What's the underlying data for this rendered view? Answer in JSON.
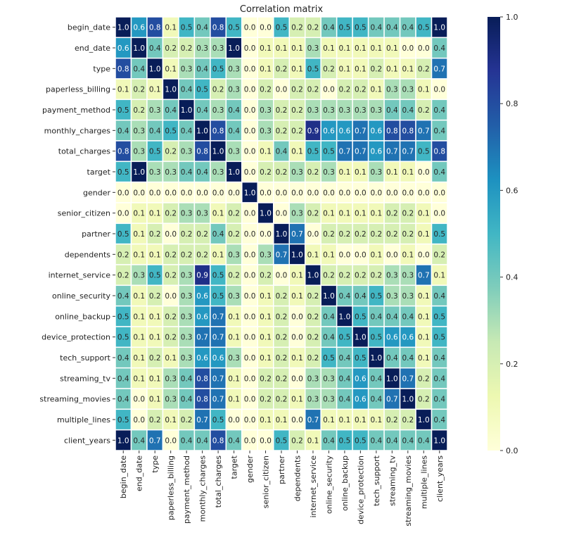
{
  "chart_data": {
    "type": "heatmap",
    "title": "Correlation matrix",
    "colormap": "YlGnBu",
    "vmin": 0.0,
    "vmax": 1.0,
    "colorbar_ticks": [
      "0.0",
      "0.2",
      "0.4",
      "0.6",
      "0.8",
      "1.0"
    ],
    "annotated": true,
    "labels": [
      "begin_date",
      "end_date",
      "type",
      "paperless_billing",
      "payment_method",
      "monthly_charges",
      "total_charges",
      "target",
      "gender",
      "senior_citizen",
      "partner",
      "dependents",
      "internet_service",
      "online_security",
      "online_backup",
      "device_protection",
      "tech_support",
      "streaming_tv",
      "streaming_movies",
      "multiple_lines",
      "client_years"
    ],
    "values": [
      [
        1.0,
        0.6,
        0.8,
        0.1,
        0.5,
        0.4,
        0.8,
        0.5,
        0.0,
        0.0,
        0.5,
        0.2,
        0.2,
        0.4,
        0.5,
        0.5,
        0.4,
        0.4,
        0.4,
        0.5,
        1.0
      ],
      [
        0.6,
        1.0,
        0.4,
        0.2,
        0.2,
        0.3,
        0.3,
        1.0,
        0.0,
        0.1,
        0.1,
        0.1,
        0.3,
        0.1,
        0.1,
        0.1,
        0.1,
        0.1,
        0.0,
        0.0,
        0.4
      ],
      [
        0.8,
        0.4,
        1.0,
        0.1,
        0.3,
        0.4,
        0.5,
        0.3,
        0.0,
        0.1,
        0.2,
        0.1,
        0.5,
        0.2,
        0.1,
        0.1,
        0.2,
        0.1,
        0.1,
        0.2,
        0.7
      ],
      [
        0.1,
        0.2,
        0.1,
        1.0,
        0.4,
        0.5,
        0.2,
        0.3,
        0.0,
        0.2,
        0.0,
        0.2,
        0.2,
        0.0,
        0.2,
        0.2,
        0.1,
        0.3,
        0.3,
        0.1,
        0.0
      ],
      [
        0.5,
        0.2,
        0.3,
        0.4,
        1.0,
        0.4,
        0.3,
        0.4,
        0.0,
        0.3,
        0.2,
        0.2,
        0.3,
        0.3,
        0.3,
        0.3,
        0.3,
        0.4,
        0.4,
        0.2,
        0.4
      ],
      [
        0.4,
        0.3,
        0.4,
        0.5,
        0.4,
        1.0,
        0.8,
        0.4,
        0.0,
        0.3,
        0.2,
        0.2,
        0.9,
        0.6,
        0.6,
        0.7,
        0.6,
        0.8,
        0.8,
        0.7,
        0.4
      ],
      [
        0.8,
        0.3,
        0.5,
        0.2,
        0.3,
        0.8,
        1.0,
        0.3,
        0.0,
        0.1,
        0.4,
        0.1,
        0.5,
        0.5,
        0.7,
        0.7,
        0.6,
        0.7,
        0.7,
        0.5,
        0.8
      ],
      [
        0.5,
        1.0,
        0.3,
        0.3,
        0.4,
        0.4,
        0.3,
        1.0,
        0.0,
        0.2,
        0.2,
        0.3,
        0.2,
        0.3,
        0.1,
        0.1,
        0.3,
        0.1,
        0.1,
        0.0,
        0.4
      ],
      [
        0.0,
        0.0,
        0.0,
        0.0,
        0.0,
        0.0,
        0.0,
        0.0,
        1.0,
        0.0,
        0.0,
        0.0,
        0.0,
        0.0,
        0.0,
        0.0,
        0.0,
        0.0,
        0.0,
        0.0,
        0.0
      ],
      [
        0.0,
        0.1,
        0.1,
        0.2,
        0.3,
        0.3,
        0.1,
        0.2,
        0.0,
        1.0,
        0.0,
        0.3,
        0.2,
        0.1,
        0.1,
        0.1,
        0.1,
        0.2,
        0.2,
        0.1,
        0.0
      ],
      [
        0.5,
        0.1,
        0.2,
        0.0,
        0.2,
        0.2,
        0.4,
        0.2,
        0.0,
        0.0,
        1.0,
        0.7,
        0.0,
        0.2,
        0.2,
        0.2,
        0.2,
        0.2,
        0.2,
        0.1,
        0.5
      ],
      [
        0.2,
        0.1,
        0.1,
        0.2,
        0.2,
        0.2,
        0.1,
        0.3,
        0.0,
        0.3,
        0.7,
        1.0,
        0.1,
        0.1,
        0.0,
        0.0,
        0.1,
        0.0,
        0.1,
        0.0,
        0.2
      ],
      [
        0.2,
        0.3,
        0.5,
        0.2,
        0.3,
        0.9,
        0.5,
        0.2,
        0.0,
        0.2,
        0.0,
        0.1,
        1.0,
        0.2,
        0.2,
        0.2,
        0.2,
        0.3,
        0.3,
        0.7,
        0.1
      ],
      [
        0.4,
        0.1,
        0.2,
        0.0,
        0.3,
        0.6,
        0.5,
        0.3,
        0.0,
        0.1,
        0.2,
        0.1,
        0.2,
        1.0,
        0.4,
        0.4,
        0.5,
        0.3,
        0.3,
        0.1,
        0.4
      ],
      [
        0.5,
        0.1,
        0.1,
        0.2,
        0.3,
        0.6,
        0.7,
        0.1,
        0.0,
        0.1,
        0.2,
        0.0,
        0.2,
        0.4,
        1.0,
        0.5,
        0.4,
        0.4,
        0.4,
        0.1,
        0.5
      ],
      [
        0.5,
        0.1,
        0.1,
        0.2,
        0.3,
        0.7,
        0.7,
        0.1,
        0.0,
        0.1,
        0.2,
        0.0,
        0.2,
        0.4,
        0.5,
        1.0,
        0.5,
        0.6,
        0.6,
        0.1,
        0.5
      ],
      [
        0.4,
        0.1,
        0.2,
        0.1,
        0.3,
        0.6,
        0.6,
        0.3,
        0.0,
        0.1,
        0.2,
        0.1,
        0.2,
        0.5,
        0.4,
        0.5,
        1.0,
        0.4,
        0.4,
        0.1,
        0.4
      ],
      [
        0.4,
        0.1,
        0.1,
        0.3,
        0.4,
        0.8,
        0.7,
        0.1,
        0.0,
        0.2,
        0.2,
        0.0,
        0.3,
        0.3,
        0.4,
        0.6,
        0.4,
        1.0,
        0.7,
        0.2,
        0.4
      ],
      [
        0.4,
        0.0,
        0.1,
        0.3,
        0.4,
        0.8,
        0.7,
        0.1,
        0.0,
        0.2,
        0.2,
        0.1,
        0.3,
        0.3,
        0.4,
        0.6,
        0.4,
        0.7,
        1.0,
        0.2,
        0.4
      ],
      [
        0.5,
        0.0,
        0.2,
        0.1,
        0.2,
        0.7,
        0.5,
        0.0,
        0.0,
        0.1,
        0.1,
        0.0,
        0.7,
        0.1,
        0.1,
        0.1,
        0.1,
        0.2,
        0.2,
        1.0,
        0.4
      ],
      [
        1.0,
        0.4,
        0.7,
        0.0,
        0.4,
        0.4,
        0.8,
        0.4,
        0.0,
        0.0,
        0.5,
        0.2,
        0.1,
        0.4,
        0.5,
        0.5,
        0.4,
        0.4,
        0.4,
        0.4,
        1.0
      ]
    ]
  }
}
